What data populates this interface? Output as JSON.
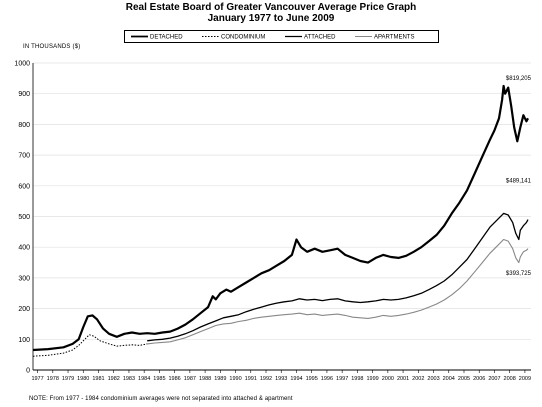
{
  "chart_data": {
    "type": "line",
    "title": "Real Estate Board of Greater Vancouver Average Price Graph",
    "subtitle": "January 1977 to June 2009",
    "ylabel": "IN THOUSANDS ($)",
    "xlabel": "",
    "ylim": [
      0,
      1000
    ],
    "xlim": [
      1977,
      2009.7
    ],
    "grid": "horizontal",
    "legend_position": "top",
    "y_ticks": [
      "0",
      "100",
      "200",
      "300",
      "400",
      "500",
      "600",
      "700",
      "800",
      "900",
      "1000"
    ],
    "x_ticks": [
      "1977",
      "1978",
      "1979",
      "1980",
      "1981",
      "1982",
      "1983",
      "1984",
      "1985",
      "1986",
      "1987",
      "1988",
      "1989",
      "1990",
      "1991",
      "1992",
      "1993",
      "1994",
      "1995",
      "1996",
      "1997",
      "1998",
      "1999",
      "2000",
      "2001",
      "2002",
      "2003",
      "2004",
      "2005",
      "2006",
      "2007",
      "2008",
      "2009"
    ],
    "series": [
      {
        "name": "DETACHED",
        "color": "#000000",
        "style": "solid",
        "width": 2.2,
        "points": [
          [
            1977.0,
            65
          ],
          [
            1978.0,
            68
          ],
          [
            1979.0,
            74
          ],
          [
            1979.6,
            85
          ],
          [
            1980.0,
            100
          ],
          [
            1980.3,
            140
          ],
          [
            1980.6,
            175
          ],
          [
            1980.9,
            178
          ],
          [
            1981.2,
            165
          ],
          [
            1981.6,
            135
          ],
          [
            1982.0,
            118
          ],
          [
            1982.5,
            108
          ],
          [
            1983.0,
            118
          ],
          [
            1983.5,
            122
          ],
          [
            1984.0,
            118
          ],
          [
            1984.5,
            120
          ],
          [
            1985.0,
            118
          ],
          [
            1985.5,
            122
          ],
          [
            1986.0,
            125
          ],
          [
            1986.5,
            135
          ],
          [
            1987.0,
            148
          ],
          [
            1987.5,
            165
          ],
          [
            1988.0,
            185
          ],
          [
            1988.5,
            205
          ],
          [
            1988.8,
            240
          ],
          [
            1989.0,
            230
          ],
          [
            1989.3,
            250
          ],
          [
            1989.7,
            262
          ],
          [
            1990.0,
            255
          ],
          [
            1990.5,
            270
          ],
          [
            1991.0,
            285
          ],
          [
            1991.5,
            300
          ],
          [
            1992.0,
            315
          ],
          [
            1992.5,
            325
          ],
          [
            1993.0,
            340
          ],
          [
            1993.5,
            355
          ],
          [
            1994.0,
            375
          ],
          [
            1994.3,
            425
          ],
          [
            1994.6,
            400
          ],
          [
            1995.0,
            385
          ],
          [
            1995.5,
            395
          ],
          [
            1996.0,
            385
          ],
          [
            1996.5,
            390
          ],
          [
            1997.0,
            395
          ],
          [
            1997.5,
            375
          ],
          [
            1998.0,
            365
          ],
          [
            1998.5,
            355
          ],
          [
            1999.0,
            350
          ],
          [
            1999.5,
            365
          ],
          [
            2000.0,
            375
          ],
          [
            2000.5,
            368
          ],
          [
            2001.0,
            365
          ],
          [
            2001.5,
            372
          ],
          [
            2002.0,
            385
          ],
          [
            2002.5,
            400
          ],
          [
            2003.0,
            420
          ],
          [
            2003.5,
            440
          ],
          [
            2004.0,
            470
          ],
          [
            2004.5,
            510
          ],
          [
            2005.0,
            545
          ],
          [
            2005.5,
            585
          ],
          [
            2006.0,
            640
          ],
          [
            2006.5,
            695
          ],
          [
            2007.0,
            750
          ],
          [
            2007.3,
            780
          ],
          [
            2007.6,
            820
          ],
          [
            2007.8,
            880
          ],
          [
            2007.9,
            925
          ],
          [
            2008.0,
            900
          ],
          [
            2008.2,
            920
          ],
          [
            2008.4,
            860
          ],
          [
            2008.6,
            790
          ],
          [
            2008.8,
            745
          ],
          [
            2009.0,
            790
          ],
          [
            2009.2,
            830
          ],
          [
            2009.4,
            810
          ],
          [
            2009.5,
            820
          ]
        ]
      },
      {
        "name": "CONDOMINIUM",
        "color": "#000000",
        "style": "dotted",
        "width": 1.0,
        "points": [
          [
            1977.0,
            45
          ],
          [
            1978.0,
            48
          ],
          [
            1979.0,
            55
          ],
          [
            1979.6,
            65
          ],
          [
            1980.0,
            80
          ],
          [
            1980.4,
            100
          ],
          [
            1980.7,
            115
          ],
          [
            1981.0,
            110
          ],
          [
            1981.4,
            95
          ],
          [
            1982.0,
            85
          ],
          [
            1982.5,
            78
          ],
          [
            1983.0,
            80
          ],
          [
            1983.5,
            82
          ],
          [
            1984.0,
            80
          ],
          [
            1984.5,
            85
          ]
        ]
      },
      {
        "name": "ATTACHED",
        "color": "#000000",
        "style": "solid",
        "width": 1.3,
        "points": [
          [
            1984.5,
            95
          ],
          [
            1985.0,
            98
          ],
          [
            1985.5,
            100
          ],
          [
            1986.0,
            104
          ],
          [
            1986.5,
            110
          ],
          [
            1987.0,
            118
          ],
          [
            1987.5,
            128
          ],
          [
            1988.0,
            140
          ],
          [
            1988.5,
            150
          ],
          [
            1989.0,
            160
          ],
          [
            1989.5,
            170
          ],
          [
            1990.0,
            175
          ],
          [
            1990.5,
            180
          ],
          [
            1991.0,
            190
          ],
          [
            1991.5,
            198
          ],
          [
            1992.0,
            205
          ],
          [
            1992.5,
            212
          ],
          [
            1993.0,
            218
          ],
          [
            1993.5,
            222
          ],
          [
            1994.0,
            225
          ],
          [
            1994.5,
            232
          ],
          [
            1995.0,
            228
          ],
          [
            1995.5,
            230
          ],
          [
            1996.0,
            226
          ],
          [
            1996.5,
            230
          ],
          [
            1997.0,
            232
          ],
          [
            1997.5,
            225
          ],
          [
            1998.0,
            222
          ],
          [
            1998.5,
            220
          ],
          [
            1999.0,
            222
          ],
          [
            1999.5,
            225
          ],
          [
            2000.0,
            230
          ],
          [
            2000.5,
            228
          ],
          [
            2001.0,
            230
          ],
          [
            2001.5,
            235
          ],
          [
            2002.0,
            242
          ],
          [
            2002.5,
            250
          ],
          [
            2003.0,
            262
          ],
          [
            2003.5,
            275
          ],
          [
            2004.0,
            290
          ],
          [
            2004.5,
            310
          ],
          [
            2005.0,
            335
          ],
          [
            2005.5,
            360
          ],
          [
            2006.0,
            395
          ],
          [
            2006.5,
            430
          ],
          [
            2007.0,
            465
          ],
          [
            2007.5,
            490
          ],
          [
            2007.9,
            510
          ],
          [
            2008.2,
            505
          ],
          [
            2008.5,
            480
          ],
          [
            2008.7,
            445
          ],
          [
            2008.9,
            425
          ],
          [
            2009.0,
            455
          ],
          [
            2009.2,
            470
          ],
          [
            2009.4,
            480
          ],
          [
            2009.5,
            490
          ]
        ]
      },
      {
        "name": "APARTMENTS",
        "color": "#888888",
        "style": "solid",
        "width": 1.1,
        "points": [
          [
            1984.5,
            85
          ],
          [
            1985.0,
            88
          ],
          [
            1985.5,
            90
          ],
          [
            1986.0,
            92
          ],
          [
            1986.5,
            98
          ],
          [
            1987.0,
            105
          ],
          [
            1987.5,
            115
          ],
          [
            1988.0,
            125
          ],
          [
            1988.5,
            135
          ],
          [
            1989.0,
            145
          ],
          [
            1989.5,
            150
          ],
          [
            1990.0,
            152
          ],
          [
            1990.5,
            158
          ],
          [
            1991.0,
            162
          ],
          [
            1991.5,
            168
          ],
          [
            1992.0,
            172
          ],
          [
            1992.5,
            175
          ],
          [
            1993.0,
            178
          ],
          [
            1993.5,
            180
          ],
          [
            1994.0,
            182
          ],
          [
            1994.5,
            185
          ],
          [
            1995.0,
            180
          ],
          [
            1995.5,
            182
          ],
          [
            1996.0,
            178
          ],
          [
            1996.5,
            180
          ],
          [
            1997.0,
            182
          ],
          [
            1997.5,
            178
          ],
          [
            1998.0,
            172
          ],
          [
            1998.5,
            170
          ],
          [
            1999.0,
            168
          ],
          [
            1999.5,
            172
          ],
          [
            2000.0,
            178
          ],
          [
            2000.5,
            175
          ],
          [
            2001.0,
            178
          ],
          [
            2001.5,
            182
          ],
          [
            2002.0,
            188
          ],
          [
            2002.5,
            195
          ],
          [
            2003.0,
            205
          ],
          [
            2003.5,
            215
          ],
          [
            2004.0,
            228
          ],
          [
            2004.5,
            245
          ],
          [
            2005.0,
            265
          ],
          [
            2005.5,
            290
          ],
          [
            2006.0,
            320
          ],
          [
            2006.5,
            350
          ],
          [
            2007.0,
            380
          ],
          [
            2007.5,
            405
          ],
          [
            2007.9,
            425
          ],
          [
            2008.2,
            420
          ],
          [
            2008.5,
            395
          ],
          [
            2008.7,
            365
          ],
          [
            2008.9,
            350
          ],
          [
            2009.0,
            368
          ],
          [
            2009.2,
            385
          ],
          [
            2009.4,
            390
          ],
          [
            2009.5,
            395
          ]
        ]
      }
    ],
    "annotations": [
      {
        "text": "$819,205",
        "x": 2009.5,
        "y": 945
      },
      {
        "text": "$489,141",
        "x": 2009.5,
        "y": 610
      },
      {
        "text": "$393,725",
        "x": 2009.5,
        "y": 310
      }
    ]
  },
  "footnote": "NOTE:  From 1977 - 1984 condominium averages were not separated into attached & apartment"
}
